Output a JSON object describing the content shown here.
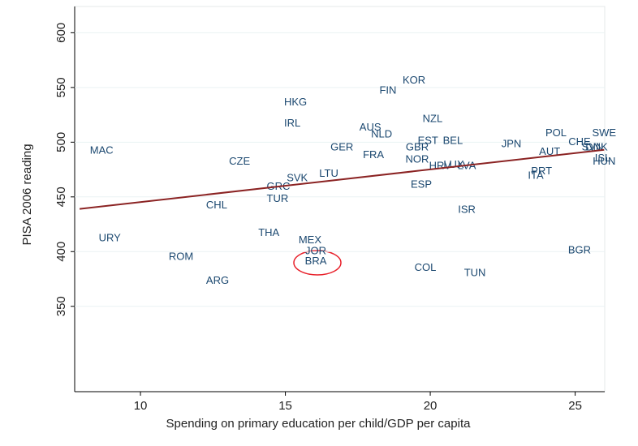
{
  "chart_data": {
    "type": "scatter",
    "xlabel": "Spending on primary education per child/GDP per capita",
    "ylabel": "PISA 2006 reading",
    "labels": [
      "MAC",
      "CZE",
      "CHL",
      "URY",
      "ROM",
      "ARG",
      "THA",
      "HKG",
      "IRL",
      "SVK",
      "GRC",
      "TUR",
      "LTU",
      "MEX",
      "JOR",
      "BRA",
      "GER",
      "FRA",
      "AUS",
      "NLD",
      "FIN",
      "KOR",
      "NZL",
      "EST",
      "BEL",
      "GBR",
      "NOR",
      "ESP",
      "HRV",
      "LUX",
      "LVA",
      "ISR",
      "COL",
      "TUN",
      "JPN",
      "POL",
      "AUT",
      "CHE",
      "SVN",
      "DNK",
      "PRT",
      "ITA",
      "SWE",
      "ISL",
      "HUN",
      "BGR"
    ],
    "x": [
      8.66,
      13.42,
      12.63,
      8.94,
      11.4,
      12.66,
      14.43,
      15.35,
      15.24,
      15.41,
      14.76,
      14.73,
      16.5,
      15.85,
      16.05,
      16.05,
      16.95,
      18.04,
      17.93,
      18.32,
      18.54,
      19.44,
      20.08,
      19.92,
      20.78,
      19.55,
      19.55,
      19.69,
      20.34,
      20.81,
      21.26,
      21.26,
      19.83,
      21.54,
      22.8,
      24.34,
      24.12,
      25.15,
      25.6,
      25.74,
      23.84,
      23.64,
      26.0,
      25.95,
      26.0,
      25.15
    ],
    "values": [
      492,
      482,
      442,
      412,
      395,
      373,
      417,
      536,
      517,
      467,
      459,
      448,
      471,
      410,
      400,
      391,
      495,
      488,
      513,
      507,
      547,
      556,
      521,
      501,
      501,
      495,
      484,
      461,
      478,
      479,
      478,
      438,
      385,
      380,
      498,
      508,
      491,
      500,
      495,
      495,
      473,
      469,
      508,
      485,
      482,
      401
    ],
    "fit_line": {
      "color": "#8b2323",
      "x": [
        7.9,
        26.0
      ],
      "y": [
        439,
        493
      ]
    },
    "color": "#1a476f",
    "xlim": [
      7.73,
      26.02
    ],
    "ylim": [
      272,
      624
    ],
    "xticks": [
      10,
      15,
      20,
      25
    ],
    "yticks": [
      350,
      400,
      450,
      500,
      550,
      600
    ],
    "grid": true
  }
}
